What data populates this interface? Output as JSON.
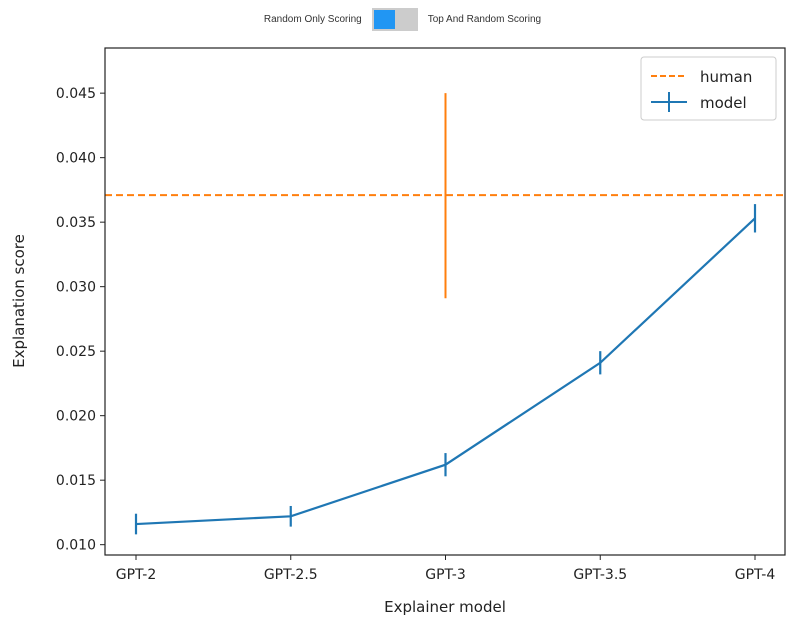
{
  "toggle": {
    "left_label": "Random Only Scoring",
    "right_label": "Top And Random Scoring",
    "state": "left",
    "knob_color": "#2196f3"
  },
  "chart_data": {
    "type": "line",
    "xlabel": "Explainer model",
    "ylabel": "Explanation score",
    "categories": [
      "GPT-2",
      "GPT-2.5",
      "GPT-3",
      "GPT-3.5",
      "GPT-4"
    ],
    "ylim": [
      0.0092,
      0.0485
    ],
    "yticks": [
      "0.010",
      "0.015",
      "0.020",
      "0.025",
      "0.030",
      "0.035",
      "0.040",
      "0.045"
    ],
    "grid": false,
    "legend_placement": "top-right",
    "series": [
      {
        "name": "model",
        "color": "#1f77b4",
        "values": [
          0.0116,
          0.0122,
          0.0162,
          0.0241,
          0.0353
        ],
        "errors": [
          0.0008,
          0.0008,
          0.0009,
          0.0009,
          0.0011
        ]
      },
      {
        "name": "human",
        "color": "#ff7f0e",
        "style": "dashed",
        "value": 0.0371,
        "error_at": "GPT-3",
        "error_range": [
          0.0291,
          0.045
        ]
      }
    ]
  }
}
